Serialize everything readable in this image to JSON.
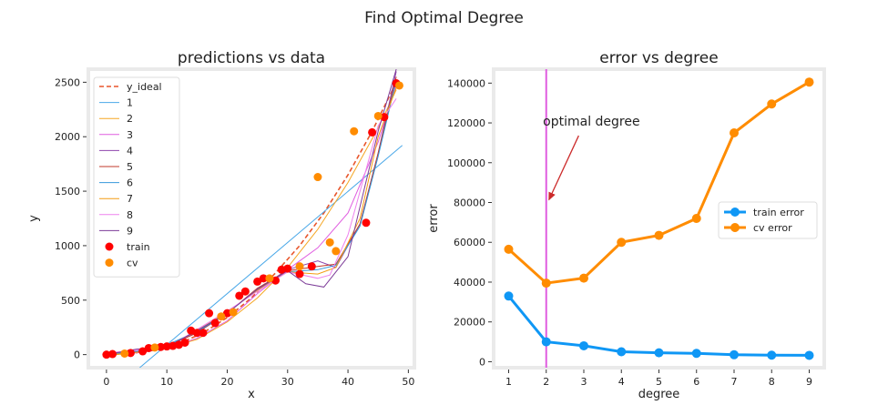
{
  "suptitle": "Find Optimal Degree",
  "chart_data": [
    {
      "type": "scatter",
      "title": "predictions vs data",
      "xlabel": "x",
      "ylabel": "y",
      "xlim": [
        -3,
        51
      ],
      "ylim": [
        -120,
        2620
      ],
      "xticks": [
        0,
        10,
        20,
        30,
        40,
        50
      ],
      "yticks": [
        0,
        500,
        1000,
        1500,
        2000,
        2500
      ],
      "grid": false,
      "legend_position": "upper left",
      "lines": [
        {
          "name": "y_ideal",
          "style": "dashed",
          "color": "#e8552b",
          "x": [
            0,
            4,
            8,
            12,
            16,
            20,
            24,
            28,
            32,
            36,
            40,
            44,
            48
          ],
          "y": [
            0,
            10,
            40,
            100,
            200,
            340,
            520,
            750,
            1000,
            1300,
            1650,
            2050,
            2500
          ]
        },
        {
          "name": "1",
          "color": "#4aa8e8",
          "x": [
            5.5,
            49
          ],
          "y": [
            -120,
            1920
          ]
        },
        {
          "name": "2",
          "color": "#f5a623",
          "x": [
            0,
            5,
            10,
            15,
            20,
            25,
            30,
            35,
            40,
            45,
            48
          ],
          "y": [
            -10,
            20,
            60,
            140,
            300,
            520,
            800,
            1150,
            1580,
            2080,
            2430
          ]
        },
        {
          "name": "3",
          "color": "#e05de0",
          "x": [
            0,
            5,
            10,
            15,
            20,
            25,
            30,
            35,
            40,
            45,
            48
          ],
          "y": [
            5,
            15,
            60,
            150,
            310,
            560,
            780,
            980,
            1300,
            1950,
            2480
          ]
        },
        {
          "name": "4",
          "color": "#8e44ad",
          "x": [
            0,
            5,
            10,
            15,
            20,
            25,
            30,
            35,
            38,
            42,
            45,
            48
          ],
          "y": [
            -10,
            30,
            80,
            200,
            380,
            600,
            780,
            860,
            800,
            1200,
            1850,
            2600
          ]
        },
        {
          "name": "5",
          "color": "#c0392b",
          "x": [
            0,
            5,
            10,
            15,
            20,
            25,
            30,
            35,
            38,
            42,
            45,
            48
          ],
          "y": [
            10,
            25,
            75,
            200,
            380,
            610,
            770,
            810,
            830,
            1200,
            1850,
            2550
          ]
        },
        {
          "name": "6",
          "color": "#3498db",
          "x": [
            0,
            5,
            10,
            15,
            20,
            25,
            30,
            35,
            38,
            42,
            45,
            48
          ],
          "y": [
            0,
            30,
            90,
            210,
            380,
            600,
            760,
            780,
            820,
            1180,
            1820,
            2520
          ]
        },
        {
          "name": "7",
          "color": "#f39c12",
          "x": [
            0,
            5,
            10,
            15,
            20,
            25,
            30,
            35,
            38,
            42,
            45,
            48
          ],
          "y": [
            -5,
            20,
            70,
            220,
            390,
            590,
            760,
            740,
            800,
            1250,
            2000,
            2450
          ]
        },
        {
          "name": "8",
          "color": "#ee82ee",
          "x": [
            0,
            5,
            10,
            15,
            20,
            25,
            30,
            35,
            37,
            40,
            45,
            48
          ],
          "y": [
            15,
            40,
            60,
            230,
            400,
            580,
            760,
            700,
            730,
            1100,
            2100,
            2350
          ]
        },
        {
          "name": "9",
          "color": "#7d3c98",
          "x": [
            0,
            5,
            10,
            15,
            20,
            25,
            30,
            33,
            36,
            40,
            45,
            48
          ],
          "y": [
            0,
            50,
            70,
            220,
            380,
            600,
            770,
            650,
            620,
            900,
            2050,
            2620
          ]
        }
      ],
      "scatter": [
        {
          "name": "train",
          "color": "#ff0000",
          "x": [
            0,
            1,
            4,
            6,
            7,
            9,
            10,
            11,
            12,
            13,
            14,
            15,
            16,
            17,
            18,
            20,
            22,
            23,
            25,
            26,
            28,
            29,
            30,
            32,
            34,
            43,
            44,
            46,
            48
          ],
          "y": [
            0,
            5,
            15,
            30,
            60,
            70,
            75,
            80,
            90,
            110,
            220,
            200,
            200,
            380,
            290,
            380,
            540,
            580,
            670,
            700,
            680,
            780,
            790,
            740,
            810,
            1210,
            2040,
            2180,
            2490
          ]
        },
        {
          "name": "cv",
          "color": "#ff8c00",
          "x": [
            3,
            8,
            19,
            21,
            27,
            32,
            35,
            37,
            38,
            41,
            45,
            48.5
          ],
          "y": [
            10,
            65,
            350,
            390,
            700,
            810,
            1630,
            1030,
            950,
            2050,
            2190,
            2470
          ]
        }
      ]
    },
    {
      "type": "line",
      "title": "error vs degree",
      "xlabel": "degree",
      "ylabel": "error",
      "xlim": [
        0.6,
        9.4
      ],
      "ylim": [
        -3000,
        147000
      ],
      "x": [
        1,
        2,
        3,
        4,
        5,
        6,
        7,
        8,
        9
      ],
      "yticks": [
        0,
        20000,
        40000,
        60000,
        80000,
        100000,
        120000,
        140000
      ],
      "grid": false,
      "legend_position": "center right",
      "series": [
        {
          "name": "train error",
          "color": "#0f97f5",
          "values": [
            33000,
            10000,
            8000,
            5000,
            4500,
            4200,
            3500,
            3300,
            3200
          ]
        },
        {
          "name": "cv error",
          "color": "#ff8c00",
          "values": [
            56500,
            39500,
            42000,
            60000,
            63500,
            72000,
            115000,
            129500,
            140500
          ]
        }
      ],
      "vline": {
        "x": 2,
        "color": "#e05de0"
      },
      "annotation": {
        "text": "optimal degree",
        "point_x": 2,
        "point_y": 80000,
        "text_x": 3.3,
        "text_y": 120000,
        "arrow_color": "#cc2b2b"
      }
    }
  ]
}
